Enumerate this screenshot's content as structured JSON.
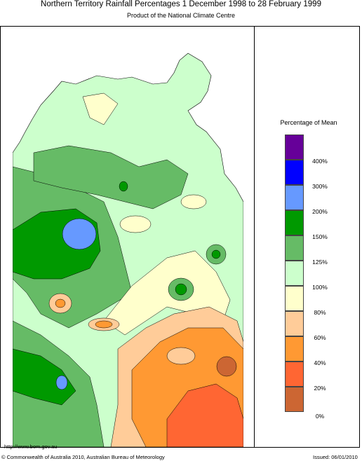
{
  "header": {
    "title": "Northern Territory Rainfall Percentages 1 December 1998 to 28 February 1999",
    "subtitle": "Product of the National Climate Centre"
  },
  "legend": {
    "title": "Percentage of Mean",
    "classes": [
      {
        "color": "#660099"
      },
      {
        "color": "#0000ff"
      },
      {
        "color": "#6699ff"
      },
      {
        "color": "#009900"
      },
      {
        "color": "#66bb66"
      },
      {
        "color": "#ccffcc"
      },
      {
        "color": "#ffffcc"
      },
      {
        "color": "#ffcc99"
      },
      {
        "color": "#ff9933"
      },
      {
        "color": "#ff6633"
      },
      {
        "color": "#cc6633"
      }
    ],
    "labels": [
      "400%",
      "300%",
      "200%",
      "150%",
      "125%",
      "100%",
      "80%",
      "60%",
      "40%",
      "20%",
      "0%"
    ]
  },
  "footer": {
    "url": "http://www.bom.gov.au",
    "copyright": "© Commonwealth of Australia 2010, Australian Bureau of Meteorology",
    "issued": "Issued: 06/01/2010"
  }
}
